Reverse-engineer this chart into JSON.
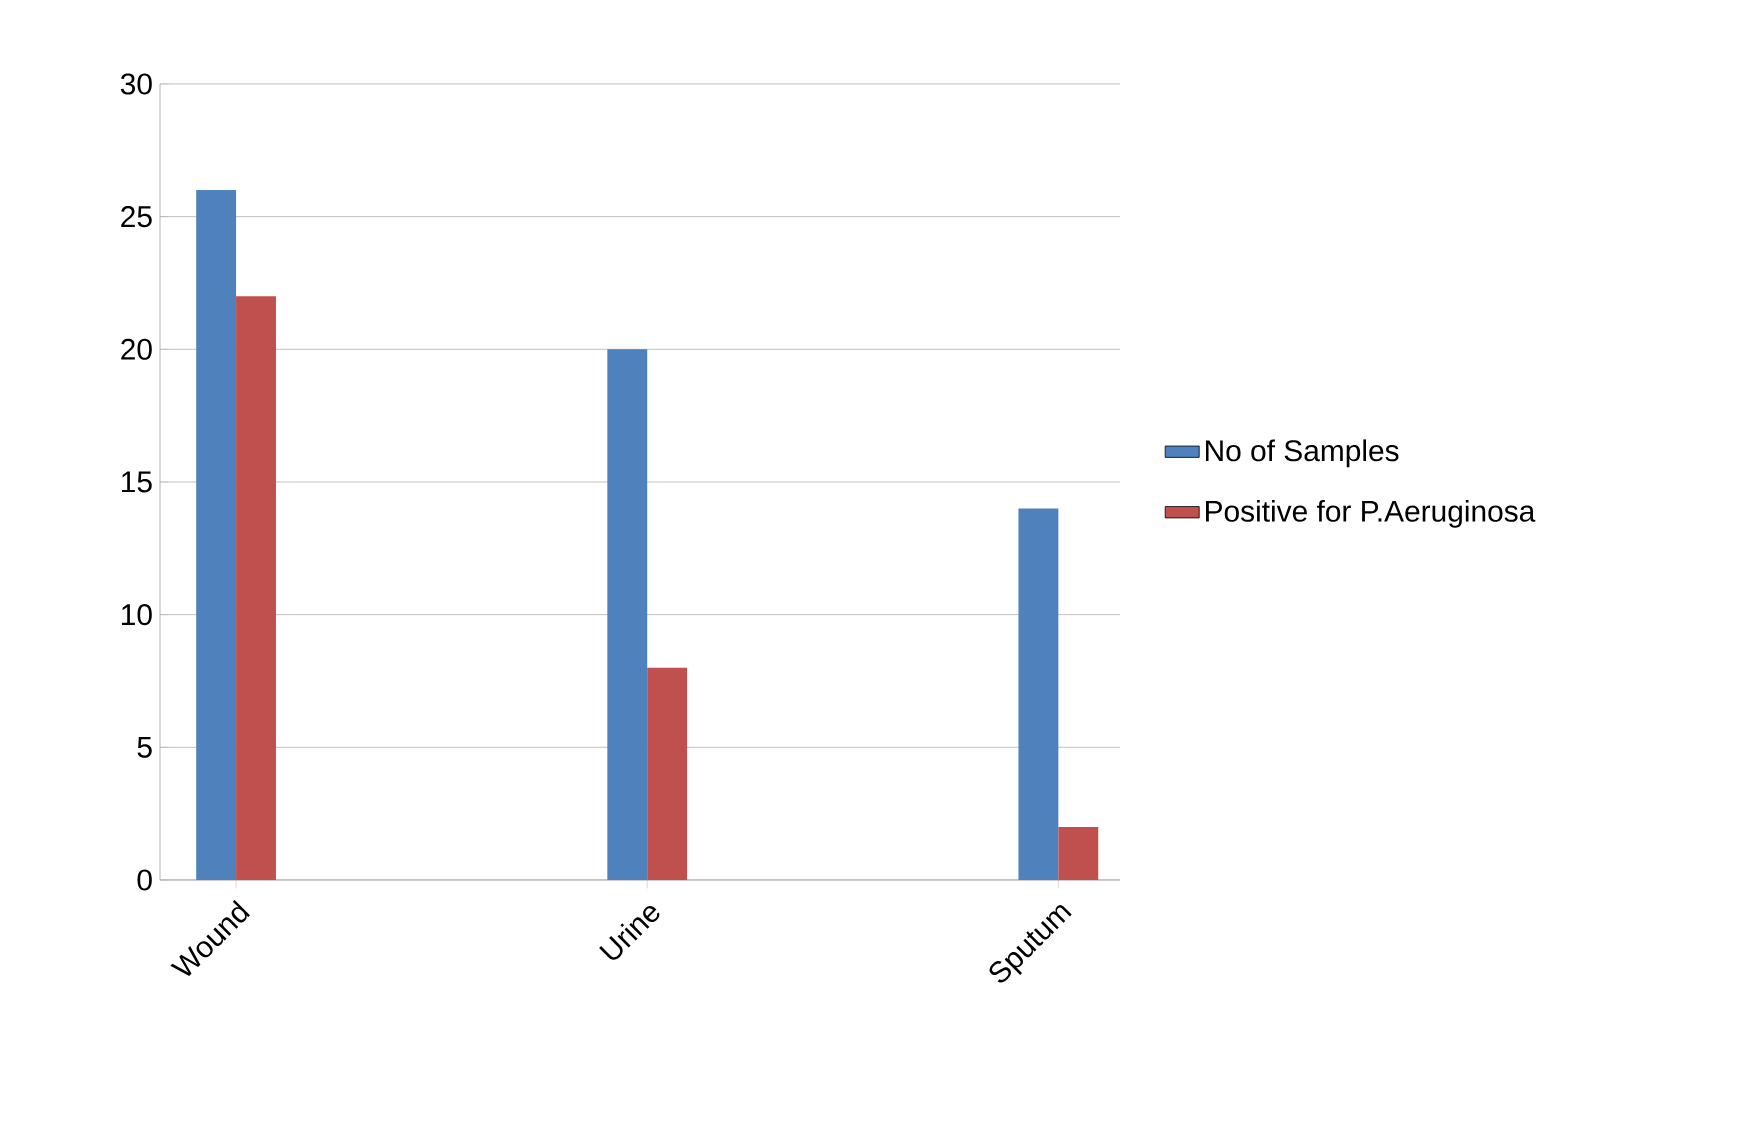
{
  "chart_data": {
    "type": "bar",
    "categories": [
      "Wound",
      "Urine",
      "Sputum"
    ],
    "series": [
      {
        "name": "No of Samples",
        "color": "#4f81bd",
        "values": [
          26,
          20,
          14
        ]
      },
      {
        "name": "Positive for P.Aeruginosa",
        "color": "#c0504d",
        "values": [
          22,
          8,
          2
        ]
      }
    ],
    "ylim": [
      0,
      30
    ],
    "yticks": [
      0,
      5,
      10,
      15,
      20,
      25,
      30
    ],
    "grid": "y",
    "legend": "right"
  }
}
